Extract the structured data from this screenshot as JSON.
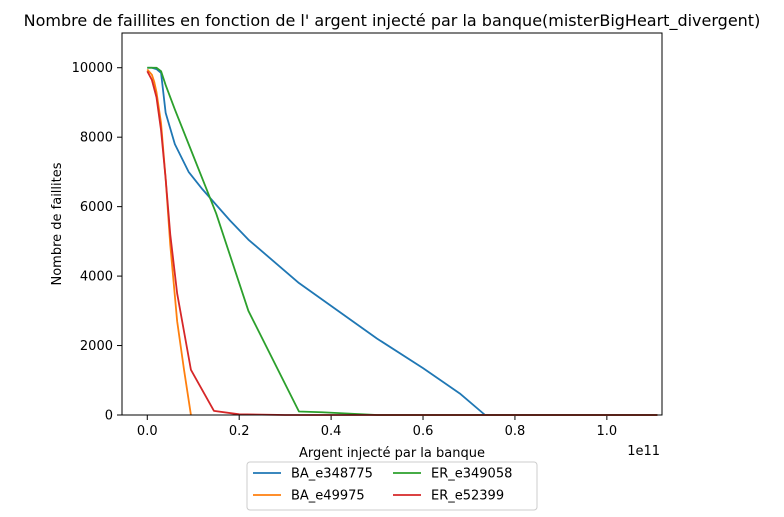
{
  "chart_data": {
    "type": "line",
    "title": "Nombre de faillites en fonction de l' argent injecté par la banque(misterBigHeart_divergent)",
    "xlabel": "Argent injecté par la banque",
    "ylabel": "Nombre de faillites",
    "x_offset_label": "1e11",
    "xlim": [
      -0.055,
      1.12
    ],
    "ylim": [
      0,
      11000
    ],
    "x_ticks": [
      0.0,
      0.2,
      0.4,
      0.6,
      0.8,
      1.0
    ],
    "x_tick_labels": [
      "0.0",
      "0.2",
      "0.4",
      "0.6",
      "0.8",
      "1.0"
    ],
    "y_ticks": [
      0,
      2000,
      4000,
      6000,
      8000,
      10000
    ],
    "y_tick_labels": [
      "0",
      "2000",
      "4000",
      "6000",
      "8000",
      "10000"
    ],
    "grid": false,
    "legend_position": "below",
    "series": [
      {
        "name": "BA_e348775",
        "color": "#1f77b4",
        "x": [
          0.0,
          0.01,
          0.02,
          0.03,
          0.04,
          0.06,
          0.09,
          0.12,
          0.15,
          0.18,
          0.22,
          0.33,
          0.5,
          0.6,
          0.68,
          0.735,
          0.8,
          0.9,
          1.0,
          1.11
        ],
        "y": [
          10000,
          10000,
          9960,
          9850,
          8700,
          7800,
          7000,
          6500,
          6050,
          5600,
          5050,
          3800,
          2200,
          1350,
          620,
          0,
          0,
          0,
          0,
          0
        ]
      },
      {
        "name": "BA_e49975",
        "color": "#ff7f0e",
        "x": [
          0.0,
          0.01,
          0.015,
          0.02,
          0.03,
          0.04,
          0.05,
          0.065,
          0.08,
          0.095
        ],
        "y": [
          9950,
          9800,
          9600,
          9300,
          8400,
          6800,
          4900,
          2700,
          1300,
          0
        ]
      },
      {
        "name": "ER_e349058",
        "color": "#2ca02c",
        "x": [
          0.0,
          0.02,
          0.03,
          0.04,
          0.06,
          0.09,
          0.12,
          0.15,
          0.22,
          0.33,
          0.38,
          0.5,
          0.6,
          0.8,
          1.0,
          1.11
        ],
        "y": [
          10000,
          10000,
          9900,
          9500,
          8800,
          7800,
          6800,
          5800,
          3000,
          100,
          80,
          0,
          0,
          0,
          0,
          0
        ]
      },
      {
        "name": "ER_e52399",
        "color": "#d62728",
        "x": [
          0.0,
          0.01,
          0.02,
          0.03,
          0.04,
          0.05,
          0.065,
          0.095,
          0.145,
          0.2,
          0.3,
          0.4,
          0.6,
          0.8,
          1.0,
          1.11
        ],
        "y": [
          9900,
          9650,
          9150,
          8200,
          6800,
          5200,
          3500,
          1300,
          120,
          20,
          0,
          0,
          0,
          0,
          0,
          0
        ]
      }
    ]
  }
}
